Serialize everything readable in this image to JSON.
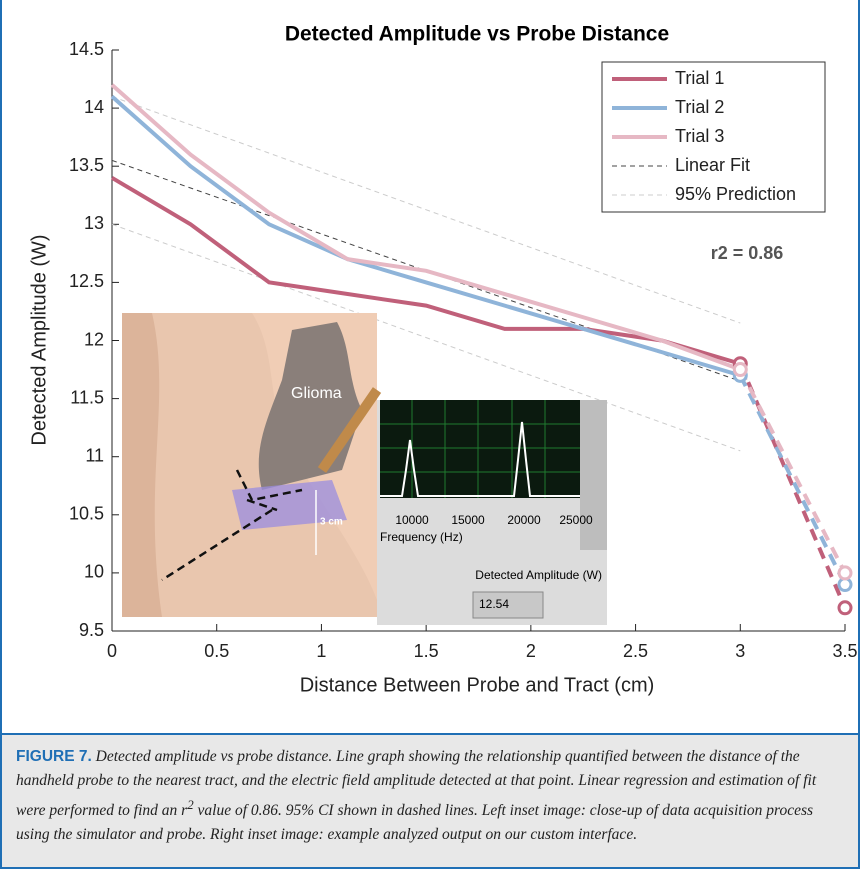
{
  "chart_data": {
    "type": "line",
    "title": "Detected Amplitude vs Probe Distance",
    "x_label": "Distance Between Probe and Tract (cm)",
    "y_label": "Detected Amplitude (W)",
    "x": [
      0,
      0.375,
      0.75,
      1.125,
      1.5,
      1.875,
      2.25,
      2.625,
      3,
      3.5
    ],
    "series": [
      {
        "name": "Trial 1",
        "color": "#c0607a",
        "markers": true,
        "values": [
          13.4,
          13.0,
          12.5,
          12.4,
          12.3,
          12.1,
          12.1,
          12.0,
          11.8,
          9.7
        ]
      },
      {
        "name": "Trial 2",
        "color": "#8fb4d9",
        "markers": true,
        "values": [
          14.1,
          13.5,
          13.0,
          12.7,
          12.5,
          12.3,
          12.1,
          11.9,
          11.7,
          9.9
        ]
      },
      {
        "name": "Trial 3",
        "color": "#e6b8c4",
        "markers": true,
        "values": [
          14.2,
          13.6,
          13.1,
          12.7,
          12.6,
          12.4,
          12.2,
          12.0,
          11.75,
          10.0
        ]
      },
      {
        "name": "Linear Fit",
        "color": "#444444",
        "dashed": true,
        "x": [
          0,
          3
        ],
        "values": [
          13.55,
          11.65
        ]
      },
      {
        "name": "95% Prediction",
        "color": "#cccccc",
        "dashed": true,
        "x": [
          0,
          3
        ],
        "values": [
          14.1,
          12.15
        ]
      },
      {
        "color": "#cccccc",
        "dashed": true,
        "x": [
          0,
          3
        ],
        "values": [
          13.0,
          11.05
        ]
      }
    ],
    "annotation": "r2 = 0.86",
    "xlim": [
      0,
      3.5
    ],
    "xticks": [
      0,
      0.5,
      1,
      1.5,
      2,
      2.5,
      3,
      3.5
    ],
    "ylim": [
      9.5,
      14.5
    ],
    "yticks": [
      9.5,
      10,
      10.5,
      11,
      11.5,
      12,
      12.5,
      13,
      13.5,
      14,
      14.5
    ],
    "legend": "upper right"
  },
  "insets": {
    "left_label": "Glioma",
    "scale_label": "3 cm",
    "freq_ticks": [
      "10000",
      "15000",
      "20000",
      "25000"
    ],
    "freq_label": "Frequency (Hz)",
    "amp_label": "Detected Amplitude (W)",
    "amp_value": "12.54"
  },
  "caption": {
    "label": "FIGURE 7.",
    "text_before": "Detected amplitude vs probe distance. Line graph showing the relationship quantified between the distance of the handheld probe to the nearest tract, and the electric field amplitude detected at that point. Linear regression and estimation of fit were performed to find an r",
    "superscript": "2",
    "text_after": " value of 0.86. 95% CI shown in dashed lines. Left inset image: close-up of data acquisition process using the simulator and probe. Right inset image: example analyzed output on our custom interface."
  }
}
